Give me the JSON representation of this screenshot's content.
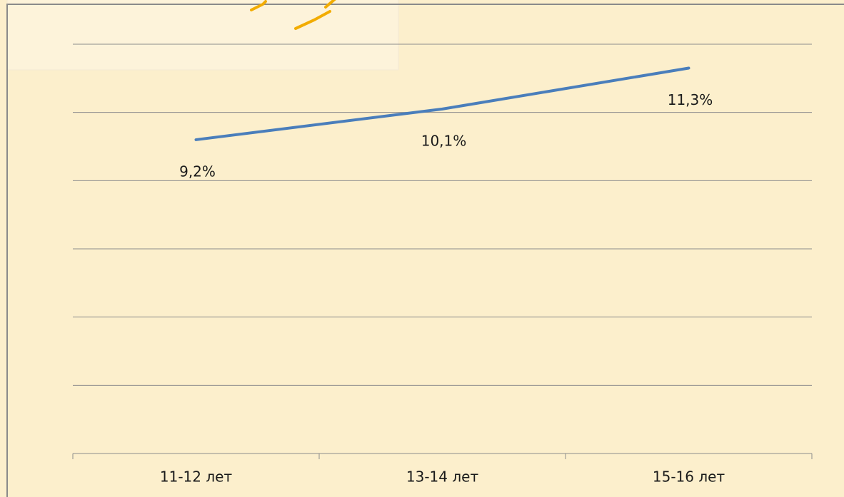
{
  "chart_data": {
    "type": "line",
    "categories": [
      "11-12 лет",
      "13-14 лет",
      "15-16 лет"
    ],
    "series": [
      {
        "values": [
          9.2,
          10.1,
          11.3
        ],
        "value_labels": [
          "9,2%",
          "10,1%",
          "11,3%"
        ],
        "color": "#4a7ebb"
      }
    ],
    "ylim": [
      0,
      12
    ],
    "yticks": [
      0,
      2,
      4,
      6,
      8,
      10,
      12
    ],
    "grid": true
  }
}
